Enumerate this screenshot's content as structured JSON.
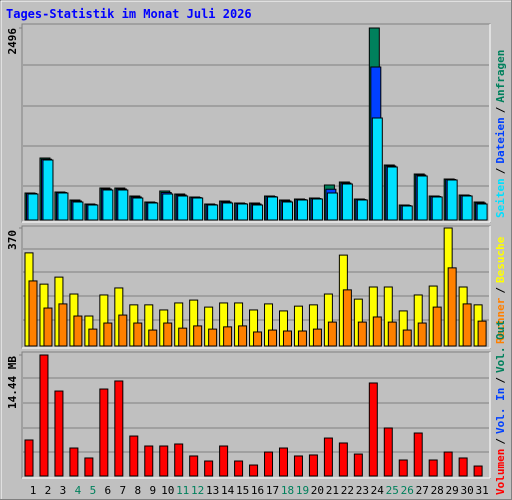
{
  "chart_data": [
    {
      "type": "bar",
      "title": "Tages-Statistik im Monat Juli 2026",
      "ylim": [
        0,
        2496
      ],
      "yticks": [
        2496
      ],
      "legend_separator": "/",
      "series": [
        {
          "name": "Anfragen",
          "color": "#00805c",
          "values": [
            351,
            806,
            364,
            260,
            208,
            416,
            416,
            312,
            234,
            377,
            338,
            299,
            208,
            247,
            221,
            221,
            312,
            260,
            273,
            286,
            455,
            494,
            273,
            2496,
            715,
            195,
            598,
            312,
            533,
            325,
            234
          ]
        },
        {
          "name": "Dateien",
          "color": "#0040ff",
          "values": [
            345,
            790,
            357,
            247,
            200,
            403,
            403,
            299,
            227,
            357,
            325,
            292,
            200,
            234,
            214,
            208,
            305,
            247,
            266,
            279,
            400,
            480,
            266,
            1989,
            702,
            188,
            585,
            305,
            526,
            318,
            221
          ]
        },
        {
          "name": "Seiten",
          "color": "#00e0ff",
          "values": [
            338,
            780,
            351,
            234,
            195,
            390,
            390,
            286,
            221,
            338,
            312,
            286,
            195,
            221,
            208,
            195,
            299,
            234,
            260,
            273,
            351,
            468,
            260,
            1326,
            689,
            182,
            572,
            299,
            520,
            312,
            208
          ]
        }
      ]
    },
    {
      "type": "bar",
      "ylim": [
        0,
        370
      ],
      "yticks": [
        370
      ],
      "legend_separator": "/",
      "series": [
        {
          "name": "Besuche",
          "color": "#ffff00",
          "values": [
            292,
            194,
            216,
            163,
            94,
            160,
            182,
            129,
            129,
            113,
            135,
            144,
            122,
            135,
            135,
            113,
            132,
            110,
            125,
            129,
            163,
            285,
            147,
            185,
            185,
            110,
            160,
            188,
            370,
            185,
            129
          ]
        },
        {
          "name": "Rechner",
          "color": "#ff8000",
          "values": [
            204,
            119,
            132,
            94,
            53,
            72,
            97,
            72,
            50,
            72,
            56,
            63,
            53,
            60,
            63,
            44,
            50,
            47,
            47,
            53,
            75,
            176,
            75,
            91,
            75,
            50,
            72,
            122,
            245,
            132,
            78
          ]
        }
      ]
    },
    {
      "type": "bar",
      "ylim": [
        0,
        14.44
      ],
      "yticks": [
        {
          "value": 14.44,
          "label": "14.44 MB"
        }
      ],
      "legend_separator": "/",
      "categories": [
        "1",
        "2",
        "3",
        "4",
        "5",
        "6",
        "7",
        "8",
        "9",
        "10",
        "11",
        "12",
        "13",
        "14",
        "15",
        "16",
        "17",
        "18",
        "19",
        "20",
        "21",
        "22",
        "23",
        "24",
        "25",
        "26",
        "27",
        "28",
        "29",
        "30",
        "31"
      ],
      "series": [
        {
          "name": "Volumen",
          "color": "#ff0000",
          "values": [
            4.3,
            14.44,
            10.14,
            3.34,
            2.15,
            10.38,
            11.34,
            4.77,
            3.58,
            3.58,
            3.82,
            2.39,
            1.79,
            3.58,
            1.79,
            1.31,
            2.86,
            3.34,
            2.39,
            2.51,
            4.53,
            3.94,
            2.62,
            11.1,
            5.73,
            1.91,
            5.13,
            1.91,
            2.86,
            2.15,
            1.19
          ]
        }
      ],
      "legend_extra": [
        {
          "name": "Vol. In",
          "color": "#0040ff"
        },
        {
          "name": "Vol. Out",
          "color": "#00805c"
        }
      ]
    }
  ]
}
